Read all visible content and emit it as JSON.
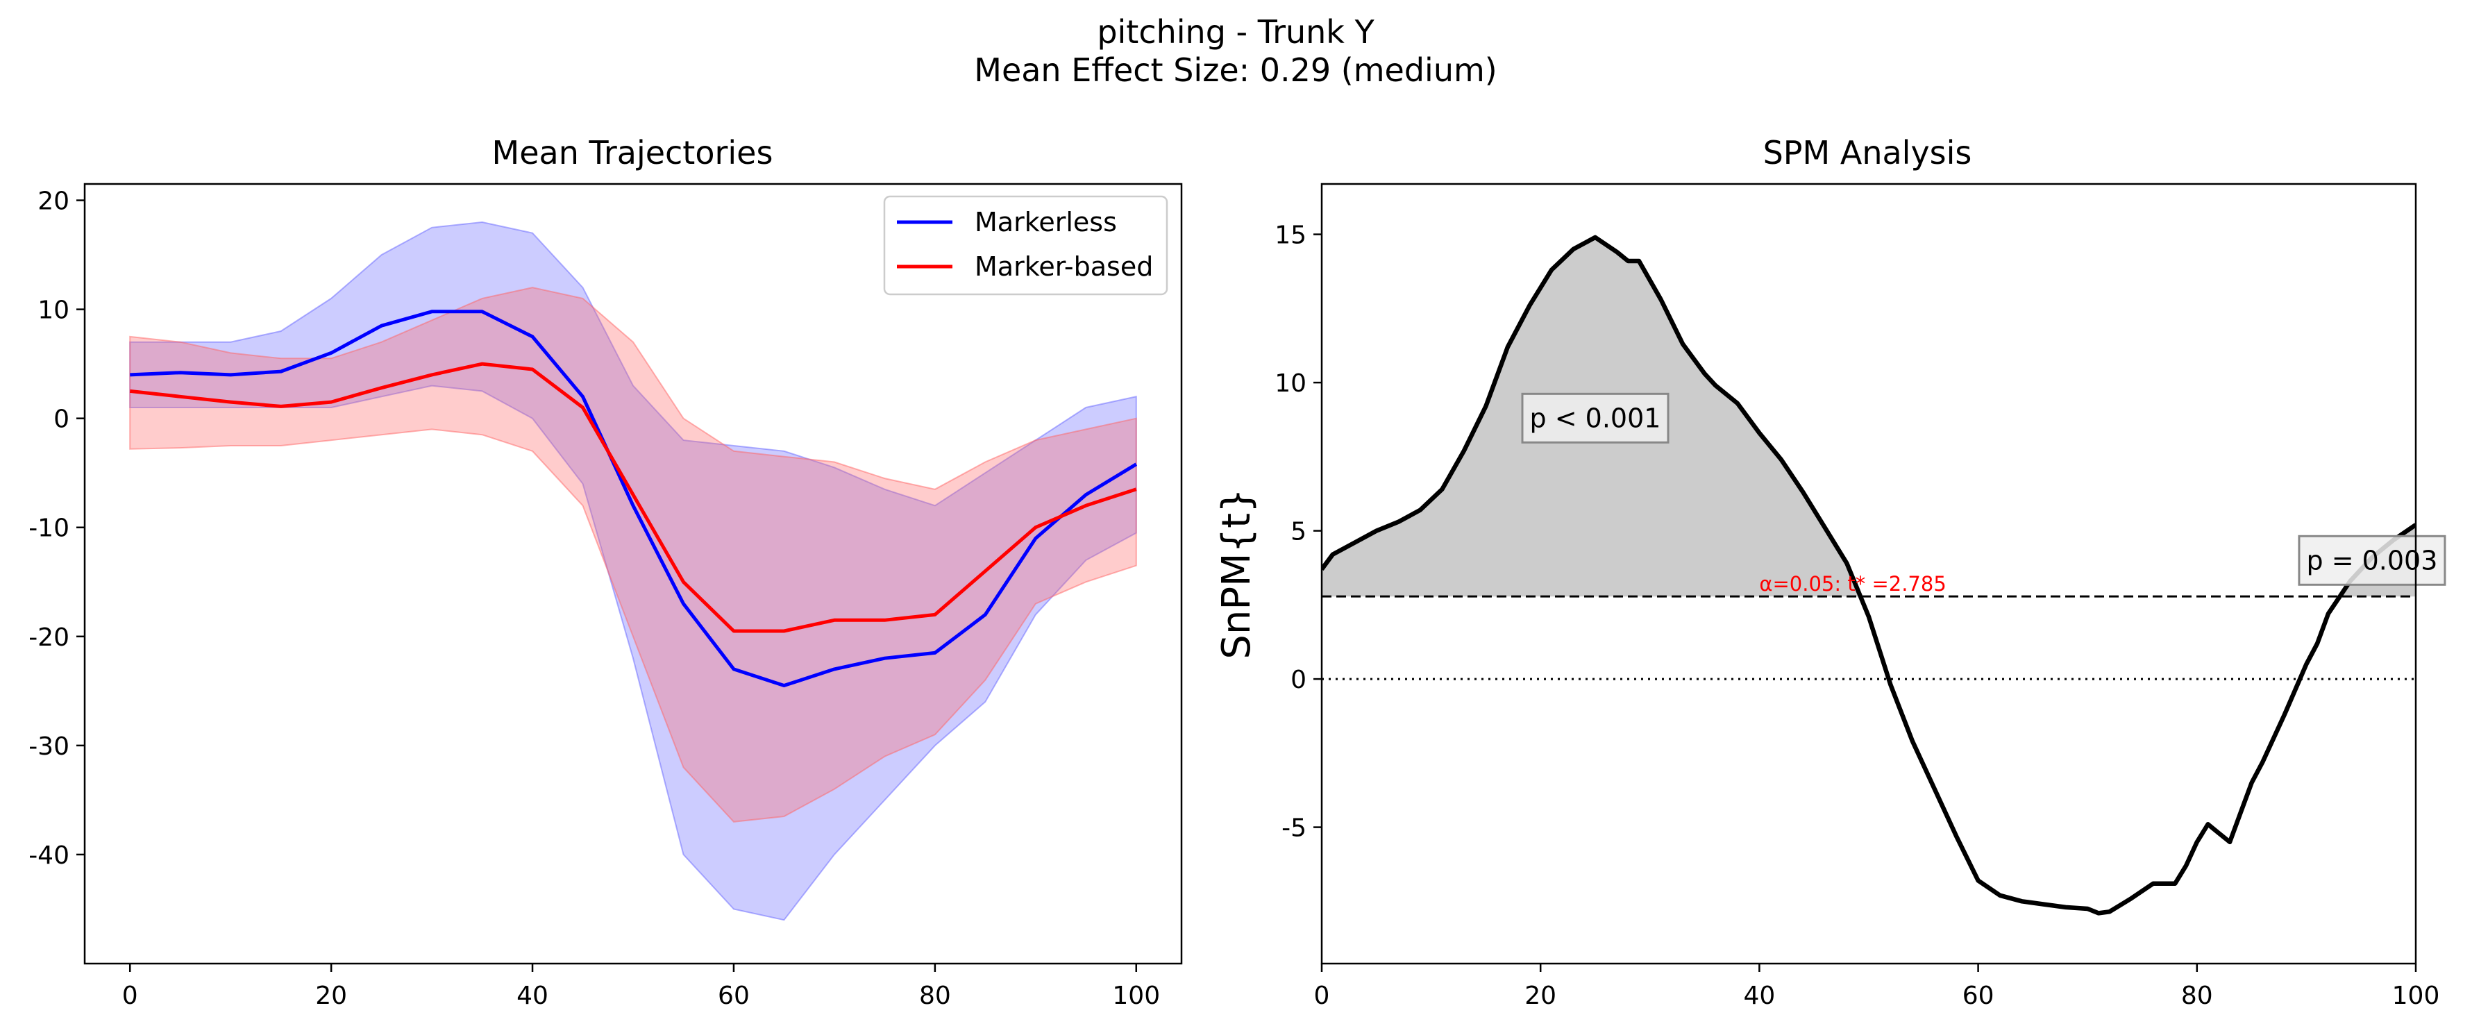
{
  "figure": {
    "title_line1": "pitching - Trunk Y",
    "title_line2": "Mean Effect Size: 0.29 (medium)"
  },
  "chart_data": [
    {
      "type": "line",
      "title": "Mean Trajectories",
      "xlabel": "",
      "ylabel": "",
      "xlim": [
        -4.5,
        104.5
      ],
      "ylim": [
        -50,
        21.5
      ],
      "xticks": [
        0,
        20,
        40,
        60,
        80,
        100
      ],
      "yticks": [
        20,
        10,
        0,
        -10,
        -20,
        -30,
        -40
      ],
      "legend_position": "top-right",
      "grid": false,
      "series": [
        {
          "name": "Markerless",
          "color": "#0000ff",
          "band_color": "#6464ff",
          "x": [
            0,
            5,
            10,
            15,
            20,
            25,
            30,
            35,
            40,
            45,
            50,
            55,
            60,
            65,
            70,
            75,
            80,
            85,
            90,
            95,
            100
          ],
          "mean": [
            4,
            4.2,
            4,
            4.3,
            6,
            8.5,
            9.8,
            9.8,
            7.5,
            2,
            -8,
            -17,
            -23,
            -24.5,
            -23,
            -22,
            -21.5,
            -18,
            -11,
            -7,
            -4.2
          ],
          "upper": [
            7,
            7,
            7,
            8,
            11,
            15,
            17.5,
            18,
            17,
            12,
            3,
            -2,
            -2.5,
            -3,
            -4.5,
            -6.5,
            -8,
            -5,
            -2,
            1,
            2
          ],
          "lower": [
            1,
            1,
            1,
            1,
            1,
            2,
            3,
            2.5,
            0,
            -6,
            -22,
            -40,
            -45,
            -46,
            -40,
            -35,
            -30,
            -26,
            -18,
            -13,
            -10.5
          ]
        },
        {
          "name": "Marker-based",
          "color": "#ff0000",
          "band_color": "#ff6464",
          "x": [
            0,
            5,
            10,
            15,
            20,
            25,
            30,
            35,
            40,
            45,
            50,
            55,
            60,
            65,
            70,
            75,
            80,
            85,
            90,
            95,
            100
          ],
          "mean": [
            2.5,
            2,
            1.5,
            1.1,
            1.5,
            2.8,
            4,
            5,
            4.5,
            1,
            -7,
            -15,
            -19.5,
            -19.5,
            -18.5,
            -18.5,
            -18,
            -14,
            -10,
            -8,
            -6.5
          ],
          "upper": [
            7.5,
            7,
            6,
            5.5,
            5.5,
            7,
            9,
            11,
            12,
            11,
            7,
            0,
            -3,
            -3.5,
            -4,
            -5.5,
            -6.5,
            -4,
            -2,
            -1,
            0
          ],
          "lower": [
            -2.8,
            -2.7,
            -2.5,
            -2.5,
            -2,
            -1.5,
            -1,
            -1.5,
            -3,
            -8,
            -20,
            -32,
            -37,
            -36.5,
            -34,
            -31,
            -29,
            -24,
            -17,
            -15,
            -13.5
          ]
        }
      ]
    },
    {
      "type": "line",
      "title": "SPM Analysis",
      "xlabel": "",
      "ylabel": "SnPM{t}",
      "xlim": [
        0,
        100
      ],
      "ylim": [
        -9.6,
        16.7
      ],
      "xticks": [
        0,
        20,
        40,
        60,
        80,
        100
      ],
      "yticks": [
        15,
        10,
        5,
        0,
        -5
      ],
      "ytick_labels": [
        "15",
        "10",
        "5",
        "0",
        "-5"
      ],
      "grid": false,
      "threshold": 2.785,
      "threshold_label": "α=0.05:  t* =2.785",
      "cluster_labels": [
        {
          "text": "p  < 0.001",
          "x": 25,
          "y": 8.8
        },
        {
          "text": "p  = 0.003",
          "x": 96,
          "y": 4.0
        }
      ],
      "series": [
        {
          "name": "SnPM{t}",
          "color": "#000000",
          "x": [
            0,
            1,
            3,
            5,
            7,
            9,
            11,
            13,
            15,
            17,
            19,
            21,
            23,
            25,
            27,
            28,
            29,
            31,
            33,
            35,
            36,
            38,
            40,
            42,
            44,
            46,
            48,
            50,
            52,
            54,
            56,
            58,
            60,
            62,
            64,
            66,
            68,
            70,
            71,
            72,
            74,
            76,
            78,
            79,
            80,
            81,
            82,
            83,
            84,
            85,
            86,
            88,
            90,
            91,
            92,
            94,
            96,
            98,
            100
          ],
          "y": [
            3.7,
            4.2,
            4.6,
            5,
            5.3,
            5.7,
            6.4,
            7.7,
            9.2,
            11.2,
            12.6,
            13.8,
            14.5,
            14.9,
            14.4,
            14.1,
            14.1,
            12.8,
            11.3,
            10.3,
            9.9,
            9.3,
            8.3,
            7.4,
            6.3,
            5.1,
            3.9,
            2.1,
            -0.2,
            -2.1,
            -3.7,
            -5.3,
            -6.8,
            -7.3,
            -7.5,
            -7.6,
            -7.7,
            -7.75,
            -7.9,
            -7.85,
            -7.4,
            -6.9,
            -6.9,
            -6.3,
            -5.5,
            -4.9,
            -5.2,
            -5.5,
            -4.5,
            -3.5,
            -2.8,
            -1.2,
            0.5,
            1.2,
            2.2,
            3.3,
            4.1,
            4.7,
            5.2
          ]
        }
      ]
    }
  ]
}
